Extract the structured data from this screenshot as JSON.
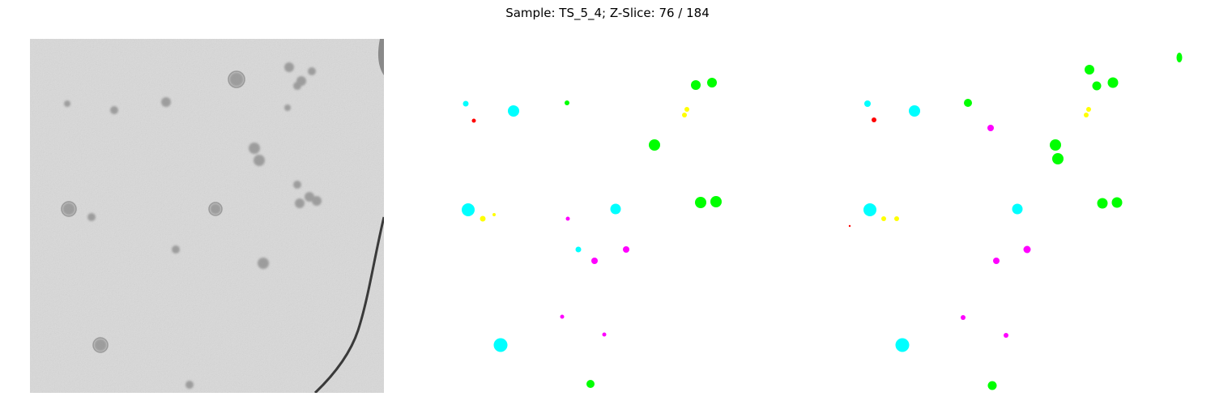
{
  "figure": {
    "title": "Sample: TS_5_4; Z-Slice: 76 / 184"
  },
  "colors": {
    "background": "#ffffff",
    "cyan": "#00ffff",
    "green": "#00ff00",
    "yellow": "#ffff00",
    "magenta": "#ff00ff",
    "red": "#ff0000",
    "tomogram_base": "#d8d8d8",
    "tomogram_dark": "#6e6e6e"
  },
  "panels": [
    {
      "name": "tomogram-slice",
      "content": "grayscale tomogram image"
    },
    {
      "name": "prediction-mask",
      "content": "colored particle markers"
    },
    {
      "name": "ground-truth-mask",
      "content": "colored particle markers"
    }
  ]
}
